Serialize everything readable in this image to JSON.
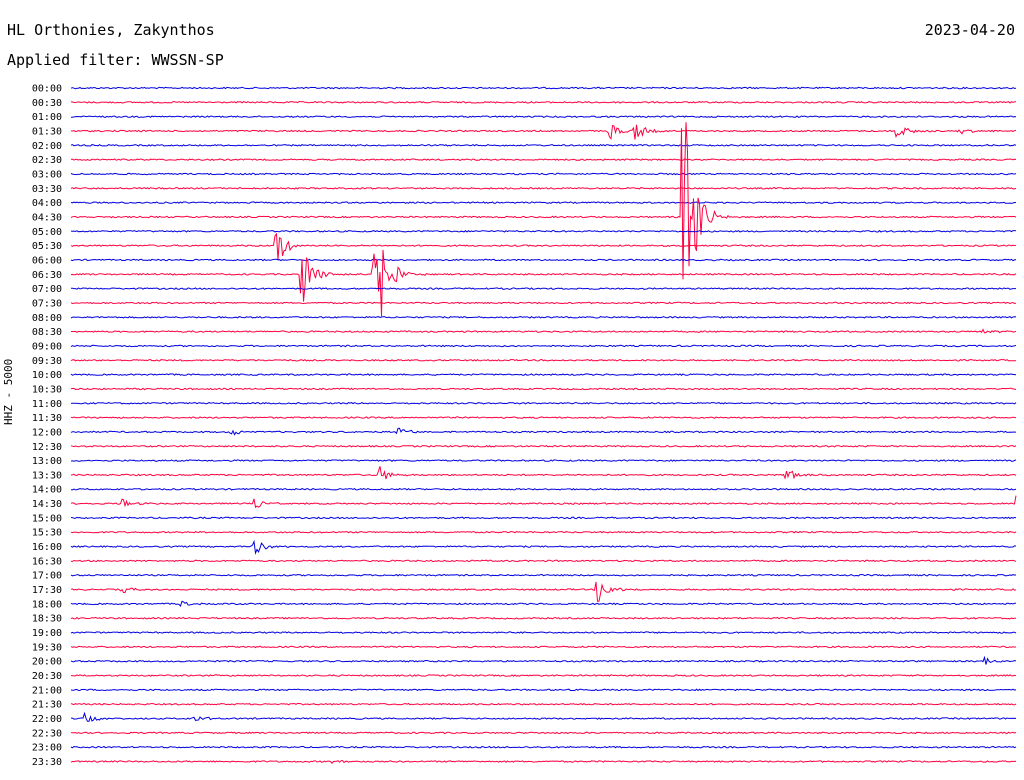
{
  "header": {
    "station": "HL Orthonies, Zakynthos",
    "filter": "Applied filter: WWSSN-SP",
    "date": "2023-04-20"
  },
  "chart_data": {
    "type": "line",
    "title": "HL Orthonies, Zakynthos",
    "subtitle": "Applied filter: WWSSN-SP",
    "ylabel": "HHZ - 5000",
    "line_colors": [
      "#0000e0",
      "#ff0040"
    ],
    "row_labels": [
      "00:00",
      "00:30",
      "01:00",
      "01:30",
      "02:00",
      "02:30",
      "03:00",
      "03:30",
      "04:00",
      "04:30",
      "05:00",
      "05:30",
      "06:00",
      "06:30",
      "07:00",
      "07:30",
      "08:00",
      "08:30",
      "09:00",
      "09:30",
      "10:00",
      "10:30",
      "11:00",
      "11:30",
      "12:00",
      "12:30",
      "13:00",
      "13:30",
      "14:00",
      "14:30",
      "15:00",
      "15:30",
      "16:00",
      "16:30",
      "17:00",
      "17:30",
      "18:00",
      "18:30",
      "19:00",
      "19:30",
      "20:00",
      "20:30",
      "21:00",
      "21:30",
      "22:00",
      "22:30",
      "23:00",
      "23:30"
    ],
    "x_range_minutes": [
      0,
      30
    ],
    "events": [
      {
        "row": 3,
        "minute": 17.1,
        "amplitude": 10
      },
      {
        "row": 3,
        "minute": 17.9,
        "amplitude": 11
      },
      {
        "row": 3,
        "minute": 26.2,
        "amplitude": 10
      },
      {
        "row": 3,
        "minute": 28.2,
        "amplitude": 5
      },
      {
        "row": 9,
        "minute": 19.4,
        "amplitude": 185
      },
      {
        "row": 11,
        "minute": 6.5,
        "amplitude": 22
      },
      {
        "row": 13,
        "minute": 7.3,
        "amplitude": 40
      },
      {
        "row": 13,
        "minute": 9.6,
        "amplitude": 110
      },
      {
        "row": 17,
        "minute": 28.9,
        "amplitude": 3
      },
      {
        "row": 24,
        "minute": 10.3,
        "amplitude": 7
      },
      {
        "row": 24,
        "minute": 5.1,
        "amplitude": 4
      },
      {
        "row": 27,
        "minute": 9.8,
        "amplitude": 9
      },
      {
        "row": 27,
        "minute": 22.7,
        "amplitude": 8
      },
      {
        "row": 29,
        "minute": 5.8,
        "amplitude": 8
      },
      {
        "row": 29,
        "minute": 1.6,
        "amplitude": 5
      },
      {
        "row": 29,
        "minute": 30.0,
        "amplitude": 9
      },
      {
        "row": 32,
        "minute": 5.8,
        "amplitude": 10
      },
      {
        "row": 35,
        "minute": 16.7,
        "amplitude": 18
      },
      {
        "row": 35,
        "minute": 1.6,
        "amplitude": 4
      },
      {
        "row": 36,
        "minute": 3.5,
        "amplitude": 4
      },
      {
        "row": 40,
        "minute": 29.0,
        "amplitude": 4
      },
      {
        "row": 44,
        "minute": 0.4,
        "amplitude": 6
      },
      {
        "row": 44,
        "minute": 3.9,
        "amplitude": 4
      },
      {
        "row": 47,
        "minute": 8.3,
        "amplitude": 3
      }
    ]
  }
}
